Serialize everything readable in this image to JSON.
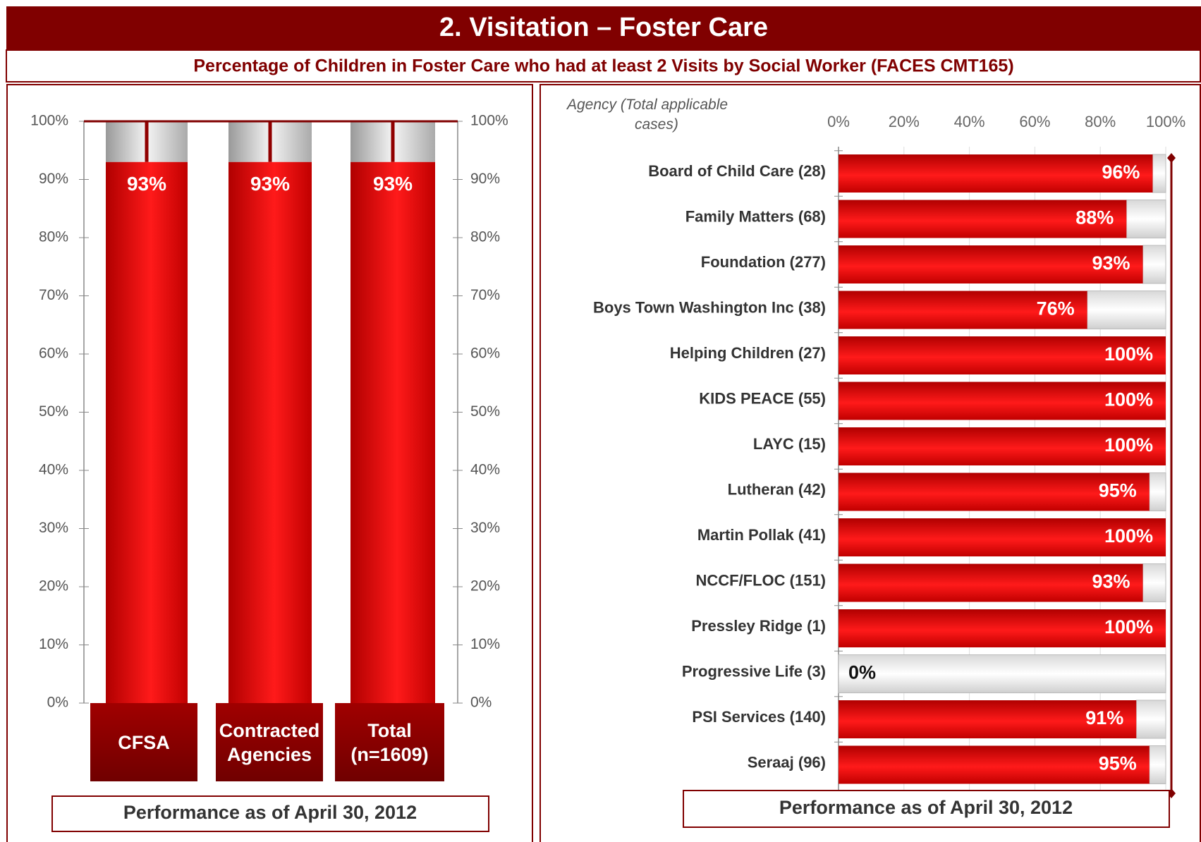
{
  "header": {
    "title": "2.  Visitation – Foster Care",
    "subtitle": "Percentage of Children in Foster Care who had at least 2 Visits by Social Worker (FACES CMT165)"
  },
  "chart_data": [
    {
      "type": "bar",
      "categories": [
        "CFSA",
        "Contracted Agencies",
        "Total (n=1609)"
      ],
      "values": [
        93,
        93,
        93
      ],
      "value_labels": [
        "93%",
        "93%",
        "93%"
      ],
      "color": "#e00000",
      "ylim": [
        0,
        100
      ],
      "yticks": [
        {
          "value": 0,
          "label": "0%"
        },
        {
          "value": 10,
          "label": "10%"
        },
        {
          "value": 20,
          "label": "20%"
        },
        {
          "value": 30,
          "label": "30%"
        },
        {
          "value": 40,
          "label": "40%"
        },
        {
          "value": 50,
          "label": "50%"
        },
        {
          "value": 60,
          "label": "60%"
        },
        {
          "value": 70,
          "label": "70%"
        },
        {
          "value": 80,
          "label": "80%"
        },
        {
          "value": 90,
          "label": "90%"
        },
        {
          "value": 100,
          "label": "100%"
        }
      ],
      "y2lim": [
        0,
        100
      ],
      "y2ticks": [
        {
          "value": 0,
          "label": "0%"
        },
        {
          "value": 10,
          "label": "10%"
        },
        {
          "value": 20,
          "label": "20%"
        },
        {
          "value": 30,
          "label": "30%"
        },
        {
          "value": 40,
          "label": "40%"
        },
        {
          "value": 50,
          "label": "50%"
        },
        {
          "value": 60,
          "label": "60%"
        },
        {
          "value": 70,
          "label": "70%"
        },
        {
          "value": 80,
          "label": "80%"
        },
        {
          "value": 90,
          "label": "90%"
        },
        {
          "value": 100,
          "label": "100%"
        }
      ],
      "footnote": "Performance as of April 30, 2012"
    },
    {
      "type": "barh",
      "y_label": "Agency (Total applicable cases)",
      "categories": [
        "Board of Child Care (28)",
        "Family Matters (68)",
        "Foundation (277)",
        "Boys Town Washington Inc (38)",
        "Helping Children (27)",
        "KIDS PEACE (55)",
        "LAYC (15)",
        "Lutheran (42)",
        "Martin Pollak (41)",
        "NCCF/FLOC (151)",
        "Pressley Ridge (1)",
        "Progressive Life (3)",
        "PSI Services (140)",
        "Seraaj (96)"
      ],
      "values": [
        96,
        88,
        93,
        76,
        100,
        100,
        100,
        95,
        100,
        93,
        100,
        0,
        91,
        95
      ],
      "value_labels": [
        "96%",
        "88%",
        "93%",
        "76%",
        "100%",
        "100%",
        "100%",
        "95%",
        "100%",
        "93%",
        "100%",
        "0%",
        "91%",
        "95%"
      ],
      "color": "#e00000",
      "xlim": [
        0,
        100
      ],
      "xticks": [
        {
          "value": 0,
          "label": "0%"
        },
        {
          "value": 20,
          "label": "20%"
        },
        {
          "value": 40,
          "label": "40%"
        },
        {
          "value": 60,
          "label": "60%"
        },
        {
          "value": 80,
          "label": "80%"
        },
        {
          "value": 100,
          "label": "100%"
        }
      ],
      "footnote": "Performance as of April 30, 2012"
    }
  ]
}
